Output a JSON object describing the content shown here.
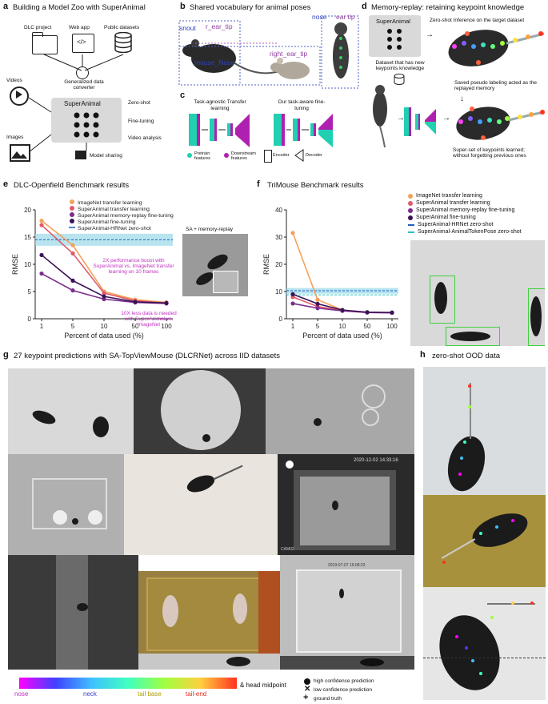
{
  "panels": {
    "a": {
      "letter": "a",
      "title": "Building a Model Zoo with SuperAnimal",
      "sources": [
        "DLC project",
        "Web app",
        "Public datasets"
      ],
      "converter": "Generalized data converter",
      "core": "SuperAnimal",
      "modes": [
        "Zero-shot",
        "Fine-tuning",
        "Video analysis"
      ],
      "inputs": [
        "Videos",
        "Images"
      ],
      "sharing": "Model sharing"
    },
    "b": {
      "letter": "b",
      "title": "Shared vocabulary for animal poses",
      "labels": [
        "snout",
        "r_ear_tip",
        "nose",
        "ear tip",
        "mouse_Nose",
        "right_ear_tip"
      ]
    },
    "c": {
      "letter": "c",
      "left_title": "Task-agnostic Transfer learning",
      "right_title": "Our task-aware fine-tuning",
      "legend": [
        "Pretrain features",
        "Downstream features",
        "Encoder",
        "Decoder"
      ]
    },
    "d": {
      "letter": "d",
      "title": "Memory-replay: retaining keypoint knowledge",
      "core": "SuperAnimal",
      "zero_shot": "Zero-shot Inference on the target dataset",
      "dataset": "Dataset that has new keypoints knowledge",
      "saved": "Saved pseudo labeling acted as the replayed memory",
      "superset": "Super-set of keypoints learned; without forgetting previous ones"
    },
    "e": {
      "letter": "e",
      "title": "DLC-Openfield Benchmark results",
      "inset": "SA + memory-replay",
      "note1": "2X performance boost with SuperAnimal vs. ImageNet transfer learning on 10 frames",
      "note2": "10X less data is needed with SuperAnimal vs. ImageNet"
    },
    "f": {
      "letter": "f",
      "title": "TriMouse Benchmark results"
    },
    "g": {
      "letter": "g",
      "title": "27 keypoint predictions with SA-TopViewMouse (DLCRNet) across IID datasets",
      "timestamp1": "2020-12-02 14:33:16",
      "cam": "CAM02",
      "timestamp2": "2019-07-07 15:08:23"
    },
    "h": {
      "letter": "h",
      "title": "zero-shot OOD data"
    }
  },
  "colorbar": {
    "labels": [
      "nose",
      "neck",
      "tail base",
      "tail-end",
      "& head midpoint"
    ],
    "gradient": [
      "#ff00ff",
      "#4040ff",
      "#40c0ff",
      "#40ffc0",
      "#a0ff40",
      "#ffd040",
      "#ff3020"
    ]
  },
  "markers": [
    "high confidence prediction",
    "low confidence prediction",
    "ground truth"
  ],
  "chart_data": [
    {
      "type": "line",
      "title": "DLC-Openfield Benchmark results",
      "xlabel": "Percent of data used (%)",
      "ylabel": "RMSE",
      "x": [
        "1",
        "5",
        "10",
        "50",
        "100"
      ],
      "ylim": [
        0,
        20
      ],
      "yticks": [
        "0",
        "5",
        "10",
        "15",
        "20"
      ],
      "baseline": {
        "name": "SuperAnimal-HRNet zero-shot",
        "value": 14.5,
        "band": [
          13.4,
          15.6
        ],
        "color": "#1f5fbf"
      },
      "series": [
        {
          "name": "ImageNet transfer learning",
          "color": "#f4a15a",
          "values": [
            18.0,
            13.5,
            5.0,
            3.5,
            3.0
          ]
        },
        {
          "name": "SuperAnimal transfer learning",
          "color": "#e05a6a",
          "values": [
            17.2,
            12.0,
            4.7,
            3.3,
            2.9
          ]
        },
        {
          "name": "SuperAnimal memory-replay fine-tuning",
          "color": "#7b2c8c",
          "values": [
            8.3,
            5.2,
            3.6,
            3.0,
            2.8
          ]
        },
        {
          "name": "SuperAnimal fine-tuning",
          "color": "#3a1258",
          "values": [
            11.7,
            7.0,
            4.1,
            3.1,
            2.9
          ]
        }
      ]
    },
    {
      "type": "line",
      "title": "TriMouse Benchmark results",
      "xlabel": "Percent of data used (%)",
      "ylabel": "RMSE",
      "x": [
        "1",
        "5",
        "10",
        "50",
        "100"
      ],
      "ylim": [
        0,
        40
      ],
      "yticks": [
        "0",
        "10",
        "20",
        "30",
        "40"
      ],
      "baselines": [
        {
          "name": "SuperAnimal-HRNet zero-shot",
          "value": 10.3,
          "band": [
            9.2,
            11.3
          ],
          "color": "#1f5fbf"
        },
        {
          "name": "SuperAnimal-AnimalTokenPose zero-shot",
          "value": 8.8,
          "color": "#30c0c0"
        }
      ],
      "series": [
        {
          "name": "ImageNet transfer learning",
          "color": "#f4a15a",
          "values": [
            31.5,
            7.0,
            3.2,
            2.4,
            2.2
          ]
        },
        {
          "name": "SuperAnimal transfer learning",
          "color": "#e05a6a",
          "values": [
            8.0,
            4.5,
            3.0,
            2.3,
            2.2
          ]
        },
        {
          "name": "SuperAnimal memory-replay fine-tuning",
          "color": "#7b2c8c",
          "values": [
            5.6,
            3.9,
            2.9,
            2.3,
            2.2
          ]
        },
        {
          "name": "SuperAnimal fine-tuning",
          "color": "#3a1258",
          "values": [
            9.0,
            5.5,
            3.2,
            2.4,
            2.3
          ]
        }
      ]
    }
  ]
}
